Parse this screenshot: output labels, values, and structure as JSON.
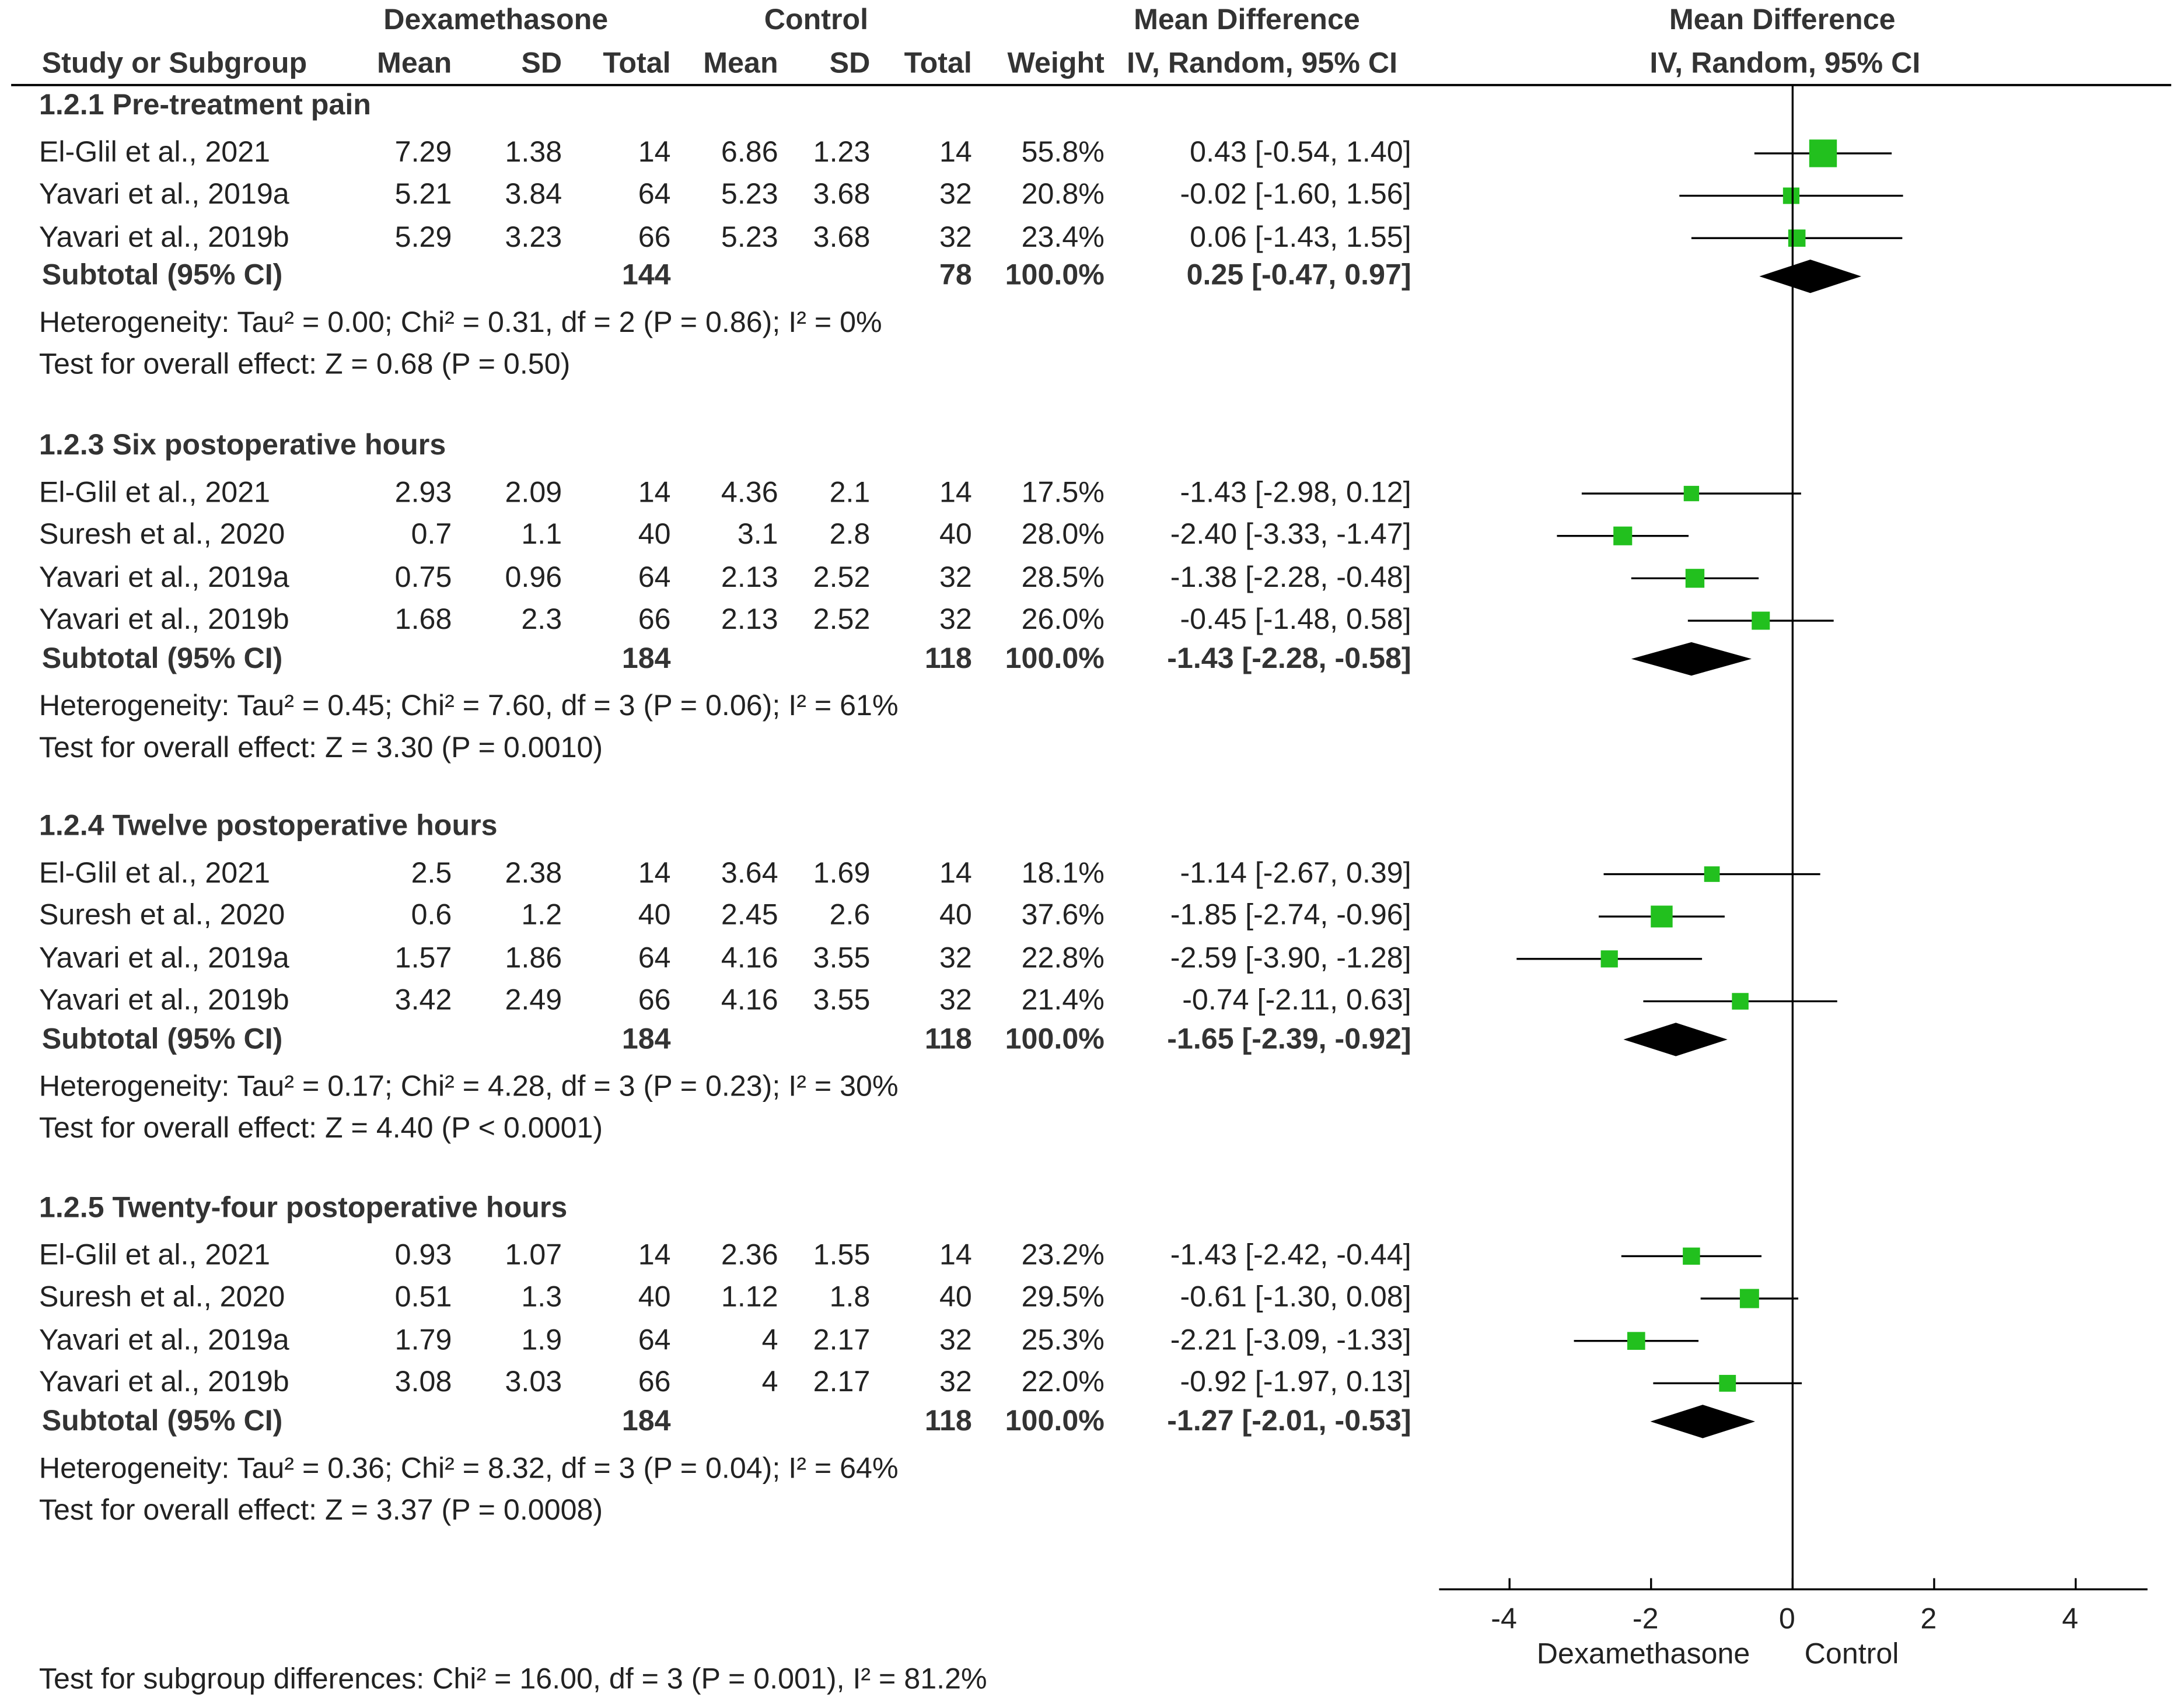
{
  "header": {
    "group1": "Dexamethasone",
    "group2": "Control",
    "effect_col": "Mean Difference",
    "plot_col": "Mean Difference",
    "study_col": "Study or Subgroup",
    "mean": "Mean",
    "sd": "SD",
    "total": "Total",
    "weight": "Weight",
    "method": "IV, Random, 95% CI"
  },
  "groups": [
    {
      "title": "1.2.1 Pre-treatment pain",
      "studies": [
        {
          "name": "El-Glil et al., 2021",
          "mean1": "7.29",
          "sd1": "1.38",
          "n1": "14",
          "mean2": "6.86",
          "sd2": "1.23",
          "n2": "14",
          "weight": "55.8%",
          "ci": "0.43 [-0.54, 1.40]",
          "md": 0.43,
          "lo": -0.54,
          "hi": 1.4,
          "w": 55.8
        },
        {
          "name": "Yavari et al., 2019a",
          "mean1": "5.21",
          "sd1": "3.84",
          "n1": "64",
          "mean2": "5.23",
          "sd2": "3.68",
          "n2": "32",
          "weight": "20.8%",
          "ci": "-0.02 [-1.60, 1.56]",
          "md": -0.02,
          "lo": -1.6,
          "hi": 1.56,
          "w": 20.8
        },
        {
          "name": "Yavari et al., 2019b",
          "mean1": "5.29",
          "sd1": "3.23",
          "n1": "66",
          "mean2": "5.23",
          "sd2": "3.68",
          "n2": "32",
          "weight": "23.4%",
          "ci": "0.06 [-1.43, 1.55]",
          "md": 0.06,
          "lo": -1.43,
          "hi": 1.55,
          "w": 23.4
        }
      ],
      "subtotal": {
        "label": "Subtotal (95% CI)",
        "n1": "144",
        "n2": "78",
        "weight": "100.0%",
        "ci": "0.25 [-0.47, 0.97]",
        "md": 0.25,
        "lo": -0.47,
        "hi": 0.97
      },
      "heterogeneity": "Heterogeneity: Tau² = 0.00; Chi² = 0.31, df = 2 (P = 0.86); I² = 0%",
      "overall": "Test for overall effect: Z = 0.68 (P = 0.50)"
    },
    {
      "title": "1.2.3 Six postoperative hours",
      "studies": [
        {
          "name": "El-Glil et al., 2021",
          "mean1": "2.93",
          "sd1": "2.09",
          "n1": "14",
          "mean2": "4.36",
          "sd2": "2.1",
          "n2": "14",
          "weight": "17.5%",
          "ci": "-1.43 [-2.98, 0.12]",
          "md": -1.43,
          "lo": -2.98,
          "hi": 0.12,
          "w": 17.5
        },
        {
          "name": "Suresh et al., 2020",
          "mean1": "0.7",
          "sd1": "1.1",
          "n1": "40",
          "mean2": "3.1",
          "sd2": "2.8",
          "n2": "40",
          "weight": "28.0%",
          "ci": "-2.40 [-3.33, -1.47]",
          "md": -2.4,
          "lo": -3.33,
          "hi": -1.47,
          "w": 28.0
        },
        {
          "name": "Yavari et al., 2019a",
          "mean1": "0.75",
          "sd1": "0.96",
          "n1": "64",
          "mean2": "2.13",
          "sd2": "2.52",
          "n2": "32",
          "weight": "28.5%",
          "ci": "-1.38 [-2.28, -0.48]",
          "md": -1.38,
          "lo": -2.28,
          "hi": -0.48,
          "w": 28.5
        },
        {
          "name": "Yavari et al., 2019b",
          "mean1": "1.68",
          "sd1": "2.3",
          "n1": "66",
          "mean2": "2.13",
          "sd2": "2.52",
          "n2": "32",
          "weight": "26.0%",
          "ci": "-0.45 [-1.48, 0.58]",
          "md": -0.45,
          "lo": -1.48,
          "hi": 0.58,
          "w": 26.0
        }
      ],
      "subtotal": {
        "label": "Subtotal (95% CI)",
        "n1": "184",
        "n2": "118",
        "weight": "100.0%",
        "ci": "-1.43 [-2.28, -0.58]",
        "md": -1.43,
        "lo": -2.28,
        "hi": -0.58
      },
      "heterogeneity": "Heterogeneity: Tau² = 0.45; Chi² = 7.60, df = 3 (P = 0.06); I² = 61%",
      "overall": "Test for overall effect: Z = 3.30 (P = 0.0010)"
    },
    {
      "title": "1.2.4 Twelve postoperative hours",
      "studies": [
        {
          "name": "El-Glil et al., 2021",
          "mean1": "2.5",
          "sd1": "2.38",
          "n1": "14",
          "mean2": "3.64",
          "sd2": "1.69",
          "n2": "14",
          "weight": "18.1%",
          "ci": "-1.14 [-2.67, 0.39]",
          "md": -1.14,
          "lo": -2.67,
          "hi": 0.39,
          "w": 18.1
        },
        {
          "name": "Suresh et al., 2020",
          "mean1": "0.6",
          "sd1": "1.2",
          "n1": "40",
          "mean2": "2.45",
          "sd2": "2.6",
          "n2": "40",
          "weight": "37.6%",
          "ci": "-1.85 [-2.74, -0.96]",
          "md": -1.85,
          "lo": -2.74,
          "hi": -0.96,
          "w": 37.6
        },
        {
          "name": "Yavari et al., 2019a",
          "mean1": "1.57",
          "sd1": "1.86",
          "n1": "64",
          "mean2": "4.16",
          "sd2": "3.55",
          "n2": "32",
          "weight": "22.8%",
          "ci": "-2.59 [-3.90, -1.28]",
          "md": -2.59,
          "lo": -3.9,
          "hi": -1.28,
          "w": 22.8
        },
        {
          "name": "Yavari et al., 2019b",
          "mean1": "3.42",
          "sd1": "2.49",
          "n1": "66",
          "mean2": "4.16",
          "sd2": "3.55",
          "n2": "32",
          "weight": "21.4%",
          "ci": "-0.74 [-2.11, 0.63]",
          "md": -0.74,
          "lo": -2.11,
          "hi": 0.63,
          "w": 21.4
        }
      ],
      "subtotal": {
        "label": "Subtotal (95% CI)",
        "n1": "184",
        "n2": "118",
        "weight": "100.0%",
        "ci": "-1.65 [-2.39, -0.92]",
        "md": -1.65,
        "lo": -2.39,
        "hi": -0.92
      },
      "heterogeneity": "Heterogeneity: Tau² = 0.17; Chi² = 4.28, df = 3 (P = 0.23); I² = 30%",
      "overall": "Test for overall effect: Z = 4.40 (P < 0.0001)"
    },
    {
      "title": "1.2.5 Twenty-four postoperative hours",
      "studies": [
        {
          "name": "El-Glil et al., 2021",
          "mean1": "0.93",
          "sd1": "1.07",
          "n1": "14",
          "mean2": "2.36",
          "sd2": "1.55",
          "n2": "14",
          "weight": "23.2%",
          "ci": "-1.43 [-2.42, -0.44]",
          "md": -1.43,
          "lo": -2.42,
          "hi": -0.44,
          "w": 23.2
        },
        {
          "name": "Suresh et al., 2020",
          "mean1": "0.51",
          "sd1": "1.3",
          "n1": "40",
          "mean2": "1.12",
          "sd2": "1.8",
          "n2": "40",
          "weight": "29.5%",
          "ci": "-0.61 [-1.30, 0.08]",
          "md": -0.61,
          "lo": -1.3,
          "hi": 0.08,
          "w": 29.5
        },
        {
          "name": "Yavari et al., 2019a",
          "mean1": "1.79",
          "sd1": "1.9",
          "n1": "64",
          "mean2": "4",
          "sd2": "2.17",
          "n2": "32",
          "weight": "25.3%",
          "ci": "-2.21 [-3.09, -1.33]",
          "md": -2.21,
          "lo": -3.09,
          "hi": -1.33,
          "w": 25.3
        },
        {
          "name": "Yavari et al., 2019b",
          "mean1": "3.08",
          "sd1": "3.03",
          "n1": "66",
          "mean2": "4",
          "sd2": "2.17",
          "n2": "32",
          "weight": "22.0%",
          "ci": "-0.92 [-1.97, 0.13]",
          "md": -0.92,
          "lo": -1.97,
          "hi": 0.13,
          "w": 22.0
        }
      ],
      "subtotal": {
        "label": "Subtotal (95% CI)",
        "n1": "184",
        "n2": "118",
        "weight": "100.0%",
        "ci": "-1.27 [-2.01, -0.53]",
        "md": -1.27,
        "lo": -2.01,
        "hi": -0.53
      },
      "heterogeneity": "Heterogeneity: Tau² = 0.36; Chi² = 8.32, df = 3 (P = 0.04); I² = 64%",
      "overall": "Test for overall effect: Z = 3.37 (P = 0.0008)"
    }
  ],
  "footer": "Test for subgroup differences: Chi² = 16.00, df = 3 (P = 0.001), I² = 81.2%",
  "axis": {
    "ticks": [
      -4,
      -2,
      0,
      2,
      4
    ],
    "tick_labels": [
      "-4",
      "-2",
      "0",
      "2",
      "4"
    ],
    "left_label": "Dexamethasone",
    "right_label": "Control"
  },
  "chart_data": {
    "type": "scatter",
    "x_range": [
      -5,
      5
    ],
    "colors": {
      "study_square": "#22c01e",
      "summary_diamond": "#000000"
    }
  }
}
